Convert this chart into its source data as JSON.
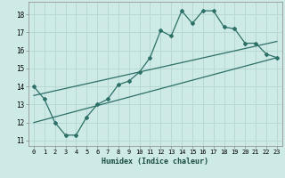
{
  "xlabel": "Humidex (Indice chaleur)",
  "xlim": [
    -0.5,
    23.5
  ],
  "ylim": [
    10.7,
    18.7
  ],
  "yticks": [
    11,
    12,
    13,
    14,
    15,
    16,
    17,
    18
  ],
  "xticks": [
    0,
    1,
    2,
    3,
    4,
    5,
    6,
    7,
    8,
    9,
    10,
    11,
    12,
    13,
    14,
    15,
    16,
    17,
    18,
    19,
    20,
    21,
    22,
    23
  ],
  "bg_color": "#cdeae6",
  "grid_color": "#b8d8d4",
  "line_color": "#2d7068",
  "line1_x": [
    0,
    1,
    2,
    3,
    4,
    5,
    6,
    7,
    8,
    9,
    10,
    11,
    12,
    13,
    14,
    15,
    16,
    17,
    18,
    19,
    20,
    21,
    22,
    23
  ],
  "line1_y": [
    14.0,
    13.3,
    12.0,
    11.3,
    11.3,
    12.3,
    13.0,
    13.3,
    14.1,
    14.3,
    14.8,
    15.6,
    17.1,
    16.8,
    18.2,
    17.5,
    18.2,
    18.2,
    17.3,
    17.2,
    16.4,
    16.4,
    15.8,
    15.6
  ],
  "line2_x": [
    0,
    23
  ],
  "line2_y": [
    13.5,
    16.5
  ],
  "line3_x": [
    0,
    23
  ],
  "line3_y": [
    12.0,
    15.6
  ]
}
